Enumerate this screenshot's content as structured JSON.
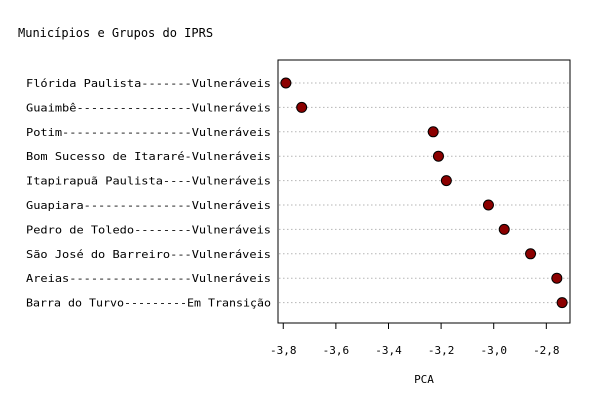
{
  "chart_data": {
    "type": "scatter",
    "title": "Municípios e Grupos do IPRS",
    "xlabel": "PCA",
    "ylabel": "",
    "xlim": [
      -3.82,
      -2.71
    ],
    "xticks": [
      -3.8,
      -3.6,
      -3.4,
      -3.2,
      -3.0,
      -2.8
    ],
    "xtick_labels": [
      "-3,8",
      "-3,6",
      "-3,4",
      "-3,2",
      "-3,0",
      "-2,8"
    ],
    "grid": "horizontal-dotted",
    "categories": [
      "Flórida Paulista-------Vulneráveis",
      "Guaimbê----------------Vulneráveis",
      "Potim------------------Vulneráveis",
      "Bom Sucesso de Itararé-Vulneráveis",
      "Itapirapuã Paulista----Vulneráveis",
      "Guapiara---------------Vulneráveis",
      "Pedro de Toledo--------Vulneráveis",
      "São José do Barreiro---Vulneráveis",
      "Areias-----------------Vulneráveis",
      "Barra do Turvo---------Em Transição"
    ],
    "values": [
      -3.79,
      -3.73,
      -3.23,
      -3.21,
      -3.18,
      -3.02,
      -2.96,
      -2.86,
      -2.76,
      -2.74
    ],
    "marker_color": "#8b0000"
  }
}
